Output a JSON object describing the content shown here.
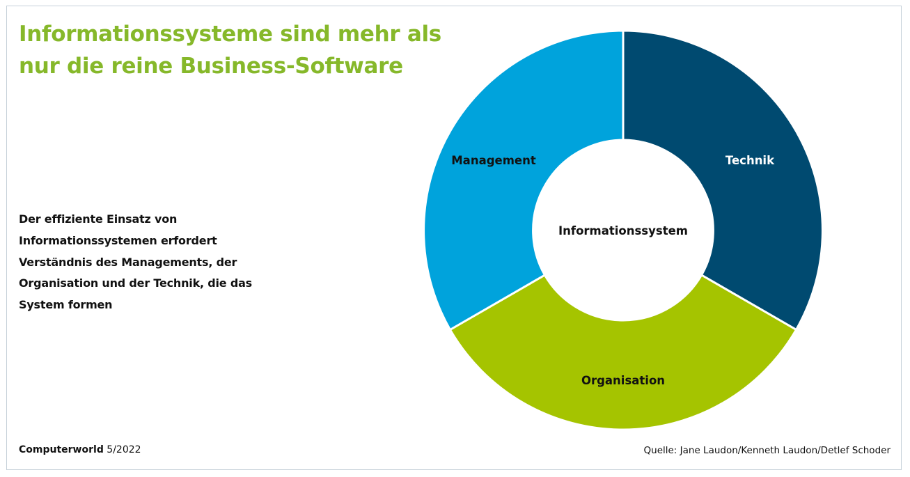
{
  "title": "Informationssysteme sind mehr als nur die reine Business-Software",
  "description": "Der effiziente Einsatz von Informationssystemen erfordert Verständnis des Managements, der Organisation und der Technik, die das System formen",
  "diagram": {
    "type": "donut",
    "center_label": "Informationssystem",
    "segments": [
      {
        "label": "Technik",
        "color": "#004a70",
        "text_color": "#ffffff"
      },
      {
        "label": "Organisation",
        "color": "#a5c400",
        "text_color": "#111111"
      },
      {
        "label": "Management",
        "color": "#00a3dc",
        "text_color": "#111111"
      }
    ]
  },
  "footer": {
    "brand": "Computerworld",
    "issue": "5/2022",
    "source": "Quelle: Jane Laudon/Kenneth Laudon/Detlef Schoder"
  }
}
